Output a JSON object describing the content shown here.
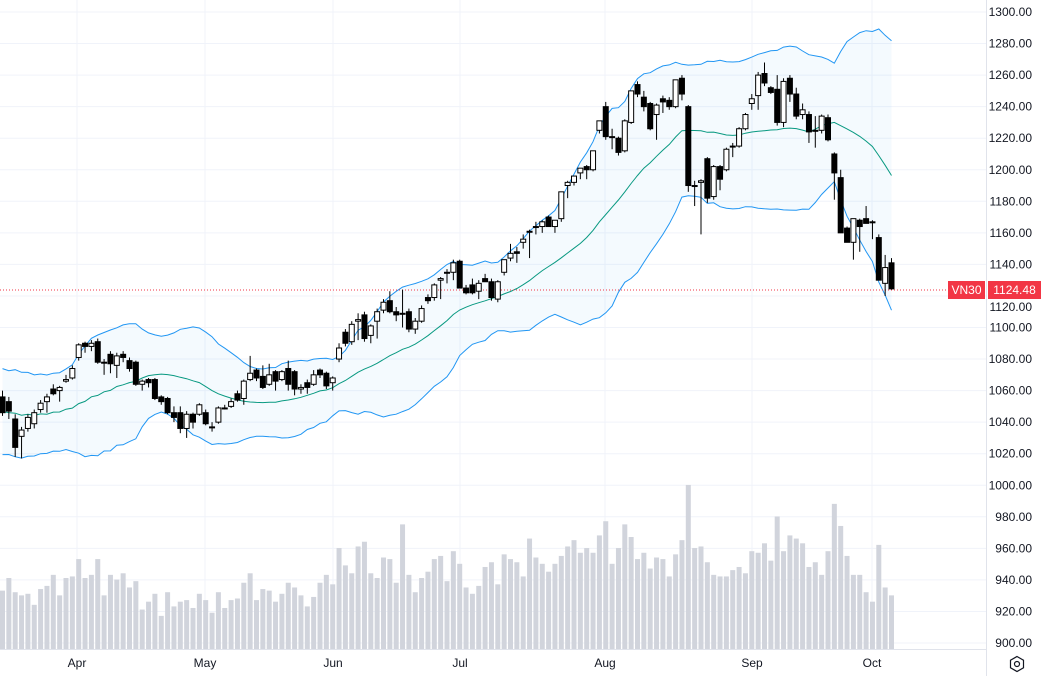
{
  "symbol": "VN30",
  "last_price": "1124.48",
  "colors": {
    "up_body": "#ffffff",
    "down_body": "#000000",
    "band": "#2196f3",
    "basis": "#089981",
    "last_price": "#f23645",
    "volume": "#d1d4dc"
  },
  "chart_data": {
    "type": "candlestick",
    "indicators": [
      "Bollinger Bands (upper, basis, lower)",
      "volume"
    ],
    "ylim": [
      900,
      1300
    ],
    "grid": true,
    "y_ticks": [
      "1300.00",
      "1280.00",
      "1260.00",
      "1240.00",
      "1220.00",
      "1200.00",
      "1180.00",
      "1160.00",
      "1140.00",
      "1120.00",
      "1100.00",
      "1080.00",
      "1060.00",
      "1040.00",
      "1020.00",
      "1000.00",
      "980.00",
      "960.00",
      "940.00",
      "920.00",
      "900.00"
    ],
    "x_ticks": [
      "Apr",
      "May",
      "Jun",
      "Jul",
      "Aug",
      "Sep",
      "Oct"
    ],
    "ohlc": [
      [
        1056,
        1060,
        1044,
        1046
      ],
      [
        1053,
        1056,
        1042,
        1047
      ],
      [
        1042,
        1045,
        1018,
        1024
      ],
      [
        1031,
        1037,
        1017,
        1035
      ],
      [
        1036,
        1045,
        1034,
        1043
      ],
      [
        1039,
        1048,
        1036,
        1046
      ],
      [
        1048,
        1054,
        1046,
        1052
      ],
      [
        1053,
        1058,
        1046,
        1056
      ],
      [
        1061,
        1064,
        1057,
        1058
      ],
      [
        1060,
        1063,
        1053,
        1062
      ],
      [
        1066,
        1070,
        1065,
        1067
      ],
      [
        1068,
        1076,
        1067,
        1074
      ],
      [
        1081,
        1090,
        1079,
        1089
      ],
      [
        1090,
        1091,
        1084,
        1088
      ],
      [
        1088,
        1092,
        1085,
        1090
      ],
      [
        1091,
        1093,
        1077,
        1078
      ],
      [
        1078,
        1080,
        1070,
        1078
      ],
      [
        1083,
        1085,
        1071,
        1077
      ],
      [
        1076,
        1084,
        1068,
        1082
      ],
      [
        1083,
        1085,
        1078,
        1081
      ],
      [
        1079,
        1081,
        1072,
        1074
      ],
      [
        1078,
        1079,
        1063,
        1064
      ],
      [
        1064,
        1067,
        1060,
        1066
      ],
      [
        1067,
        1068,
        1062,
        1065
      ],
      [
        1067,
        1068,
        1054,
        1055
      ],
      [
        1056,
        1057,
        1051,
        1053
      ],
      [
        1055,
        1056,
        1045,
        1046
      ],
      [
        1046,
        1050,
        1040,
        1043
      ],
      [
        1046,
        1050,
        1033,
        1036
      ],
      [
        1036,
        1047,
        1030,
        1045
      ],
      [
        1045,
        1046,
        1036,
        1040
      ],
      [
        1045,
        1052,
        1044,
        1051
      ],
      [
        1046,
        1048,
        1038,
        1039
      ],
      [
        1037,
        1040,
        1034,
        1037
      ],
      [
        1040,
        1050,
        1039,
        1049
      ],
      [
        1049,
        1051,
        1048,
        1049
      ],
      [
        1050,
        1055,
        1049,
        1053
      ],
      [
        1058,
        1060,
        1053,
        1054
      ],
      [
        1055,
        1067,
        1051,
        1066
      ],
      [
        1067,
        1082,
        1066,
        1071
      ],
      [
        1073,
        1074,
        1066,
        1068
      ],
      [
        1069,
        1076,
        1061,
        1062
      ],
      [
        1064,
        1077,
        1063,
        1070
      ],
      [
        1072,
        1073,
        1060,
        1066
      ],
      [
        1067,
        1073,
        1066,
        1072
      ],
      [
        1074,
        1079,
        1060,
        1064
      ],
      [
        1072,
        1073,
        1057,
        1061
      ],
      [
        1061,
        1064,
        1058,
        1062
      ],
      [
        1065,
        1067,
        1058,
        1062
      ],
      [
        1064,
        1073,
        1063,
        1070
      ],
      [
        1073,
        1074,
        1068,
        1070
      ],
      [
        1071,
        1072,
        1061,
        1063
      ],
      [
        1065,
        1069,
        1060,
        1068
      ],
      [
        1080,
        1090,
        1078,
        1087
      ],
      [
        1097,
        1099,
        1088,
        1090
      ],
      [
        1091,
        1104,
        1089,
        1102
      ],
      [
        1104,
        1109,
        1092,
        1105
      ],
      [
        1108,
        1110,
        1091,
        1093
      ],
      [
        1095,
        1102,
        1090,
        1101
      ],
      [
        1104,
        1112,
        1093,
        1110
      ],
      [
        1111,
        1118,
        1109,
        1116
      ],
      [
        1117,
        1123,
        1109,
        1110
      ],
      [
        1110,
        1113,
        1104,
        1108
      ],
      [
        1109,
        1124,
        1100,
        1109
      ],
      [
        1110,
        1112,
        1097,
        1099
      ],
      [
        1099,
        1106,
        1096,
        1104
      ],
      [
        1104,
        1114,
        1103,
        1112
      ],
      [
        1119,
        1121,
        1115,
        1117
      ],
      [
        1119,
        1128,
        1117,
        1127
      ],
      [
        1130,
        1132,
        1118,
        1131
      ],
      [
        1135,
        1137,
        1128,
        1135
      ],
      [
        1135,
        1143,
        1130,
        1141
      ],
      [
        1142,
        1143,
        1125,
        1125
      ],
      [
        1125,
        1127,
        1121,
        1122
      ],
      [
        1127,
        1131,
        1121,
        1122
      ],
      [
        1123,
        1130,
        1118,
        1128
      ],
      [
        1131,
        1134,
        1129,
        1129
      ],
      [
        1129,
        1131,
        1117,
        1119
      ],
      [
        1118,
        1130,
        1116,
        1129
      ],
      [
        1135,
        1143,
        1133,
        1143
      ],
      [
        1144,
        1153,
        1142,
        1147
      ],
      [
        1148,
        1151,
        1141,
        1147
      ],
      [
        1154,
        1159,
        1150,
        1156
      ],
      [
        1161,
        1162,
        1144,
        1161
      ],
      [
        1164,
        1167,
        1159,
        1164
      ],
      [
        1164,
        1168,
        1160,
        1167
      ],
      [
        1170,
        1171,
        1164,
        1164
      ],
      [
        1164,
        1168,
        1160,
        1168
      ],
      [
        1169,
        1186,
        1167,
        1186
      ],
      [
        1190,
        1193,
        1182,
        1192
      ],
      [
        1192,
        1196,
        1190,
        1196
      ],
      [
        1198,
        1201,
        1194,
        1201
      ],
      [
        1202,
        1203,
        1194,
        1200
      ],
      [
        1200,
        1212,
        1199,
        1212
      ],
      [
        1225,
        1231,
        1223,
        1231
      ],
      [
        1240,
        1243,
        1219,
        1221
      ],
      [
        1221,
        1226,
        1213,
        1221
      ],
      [
        1220,
        1221,
        1209,
        1211
      ],
      [
        1212,
        1232,
        1211,
        1231
      ],
      [
        1230,
        1250,
        1229,
        1250
      ],
      [
        1254,
        1256,
        1246,
        1248
      ],
      [
        1246,
        1250,
        1237,
        1240
      ],
      [
        1242,
        1243,
        1225,
        1226
      ],
      [
        1235,
        1242,
        1219,
        1241
      ],
      [
        1245,
        1247,
        1236,
        1243
      ],
      [
        1244,
        1246,
        1238,
        1240
      ],
      [
        1240,
        1257,
        1239,
        1257
      ],
      [
        1258,
        1260,
        1244,
        1248
      ],
      [
        1240,
        1241,
        1186,
        1190
      ],
      [
        1190,
        1193,
        1177,
        1190
      ],
      [
        1192,
        1194,
        1159,
        1193
      ],
      [
        1207,
        1208,
        1179,
        1182
      ],
      [
        1183,
        1203,
        1181,
        1202
      ],
      [
        1202,
        1203,
        1187,
        1194
      ],
      [
        1200,
        1214,
        1199,
        1213
      ],
      [
        1215,
        1217,
        1208,
        1215
      ],
      [
        1215,
        1227,
        1214,
        1226
      ],
      [
        1226,
        1236,
        1225,
        1235
      ],
      [
        1242,
        1248,
        1238,
        1245
      ],
      [
        1247,
        1262,
        1238,
        1260
      ],
      [
        1261,
        1268,
        1253,
        1255
      ],
      [
        1252,
        1253,
        1248,
        1249
      ],
      [
        1251,
        1260,
        1228,
        1230
      ],
      [
        1230,
        1258,
        1227,
        1256
      ],
      [
        1258,
        1260,
        1243,
        1248
      ],
      [
        1248,
        1252,
        1232,
        1234
      ],
      [
        1235,
        1242,
        1232,
        1238
      ],
      [
        1235,
        1237,
        1217,
        1224
      ],
      [
        1225,
        1234,
        1214,
        1225
      ],
      [
        1225,
        1235,
        1223,
        1234
      ],
      [
        1233,
        1235,
        1218,
        1219
      ],
      [
        1210,
        1211,
        1181,
        1198
      ],
      [
        1195,
        1200,
        1160,
        1160
      ],
      [
        1163,
        1164,
        1154,
        1154
      ],
      [
        1154,
        1169,
        1143,
        1169
      ],
      [
        1168,
        1169,
        1148,
        1164
      ],
      [
        1169,
        1177,
        1166,
        1166
      ],
      [
        1167,
        1168,
        1156,
        1167
      ],
      [
        1157,
        1159,
        1130,
        1130
      ],
      [
        1128,
        1146,
        1120,
        1138
      ],
      [
        1141,
        1144,
        1124,
        1124.48
      ]
    ],
    "volume_relative": [
      37,
      45,
      36,
      34,
      35,
      28,
      38,
      40,
      47,
      34,
      45,
      46,
      57,
      45,
      47,
      57,
      34,
      47,
      44,
      48,
      39,
      43,
      25,
      30,
      35,
      21,
      36,
      27,
      30,
      31,
      26,
      35,
      31,
      23,
      36,
      26,
      31,
      32,
      42,
      48,
      31,
      38,
      37,
      30,
      35,
      42,
      39,
      34,
      27,
      33,
      42,
      47,
      41,
      64,
      53,
      48,
      65,
      68,
      48,
      45,
      58,
      57,
      42,
      79,
      47,
      36,
      45,
      49,
      57,
      59,
      43,
      62,
      54,
      39,
      35,
      40,
      52,
      55,
      41,
      60,
      57,
      55,
      46,
      70,
      58,
      54,
      49,
      54,
      59,
      65,
      69,
      61,
      64,
      61,
      72,
      81,
      54,
      64,
      79,
      71,
      57,
      61,
      51,
      58,
      57,
      46,
      60,
      69,
      104,
      64,
      65,
      55,
      47,
      46,
      46,
      50,
      52,
      48,
      62,
      61,
      67,
      56,
      84,
      62,
      72,
      70,
      67,
      52,
      55,
      47,
      62,
      92,
      78,
      59,
      47,
      47,
      36,
      30,
      66,
      39,
      34
    ]
  }
}
